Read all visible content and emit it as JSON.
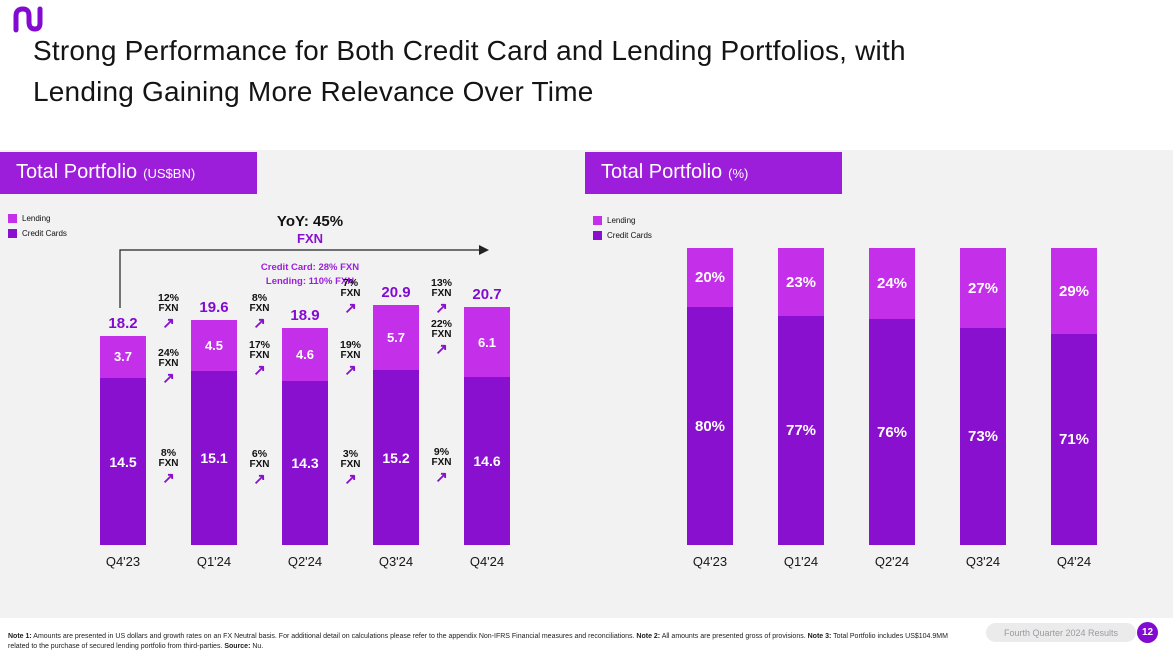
{
  "title": {
    "lines": [
      "Strong Performance for Both Credit Card and Lending Portfolios, with",
      "Lending Gaining More Relevance Over Time"
    ]
  },
  "colors": {
    "accent_purple": "#820AD1",
    "lending": "#C42FE9",
    "credit_cards": "#8A10D0",
    "panel_header": "#9C1EDB",
    "chart_band_bg": "#F2F2F3"
  },
  "legend": {
    "lending": "Lending",
    "credit_cards": "Credit Cards"
  },
  "panels": {
    "left": {
      "title": "Total Portfolio",
      "unit": "(US$BN)"
    },
    "right": {
      "title": "Total Portfolio",
      "unit": "(%)"
    }
  },
  "chart_data": [
    {
      "type": "bar",
      "stacked": true,
      "title": "Total Portfolio (US$BN)",
      "categories": [
        "Q4'23",
        "Q1'24",
        "Q2'24",
        "Q3'24",
        "Q4'24"
      ],
      "series": [
        {
          "name": "Credit Cards",
          "values": [
            14.5,
            15.1,
            14.3,
            15.2,
            14.6
          ]
        },
        {
          "name": "Lending",
          "values": [
            3.7,
            4.5,
            4.6,
            5.7,
            6.1
          ]
        }
      ],
      "totals": [
        18.2,
        19.6,
        18.9,
        20.9,
        20.7
      ],
      "ylim": [
        0,
        22
      ],
      "annotations": {
        "yoy": {
          "label": "YoY: 45%",
          "sub": "FXN"
        },
        "breakdown": [
          "Credit Card: 28% FXN",
          "Lending: 110% FXN"
        ],
        "fxn_suffix": "FXN",
        "growth_total": [
          "12%",
          "8%",
          "7%",
          "13%"
        ],
        "growth_lending": [
          "24%",
          "17%",
          "19%",
          "22%"
        ],
        "growth_credit_cards": [
          "8%",
          "6%",
          "3%",
          "9%"
        ]
      }
    },
    {
      "type": "bar",
      "stacked": true,
      "percent": true,
      "title": "Total Portfolio (%)",
      "categories": [
        "Q4'23",
        "Q1'24",
        "Q2'24",
        "Q3'24",
        "Q4'24"
      ],
      "series": [
        {
          "name": "Credit Cards",
          "values": [
            80,
            77,
            76,
            73,
            71
          ]
        },
        {
          "name": "Lending",
          "values": [
            20,
            23,
            24,
            27,
            29
          ]
        }
      ]
    }
  ],
  "footer": {
    "notes": [
      {
        "label": "Note 1:",
        "text": " Amounts are presented in US dollars and growth rates on an FX Neutral basis. For additional detail on calculations please refer to the appendix Non-IFRS Financial measures and reconciliations. "
      },
      {
        "label": "Note 2:",
        "text": " All amounts are presented gross of provisions. "
      },
      {
        "label": "Note 3:",
        "text": " Total Portfolio includes US$104.9MM related to the purchase of secured lending portfolio from third-parties. "
      },
      {
        "label": "Source:",
        "text": " Nu."
      }
    ],
    "results_label": "Fourth Quarter 2024 Results",
    "page_number": "12"
  }
}
